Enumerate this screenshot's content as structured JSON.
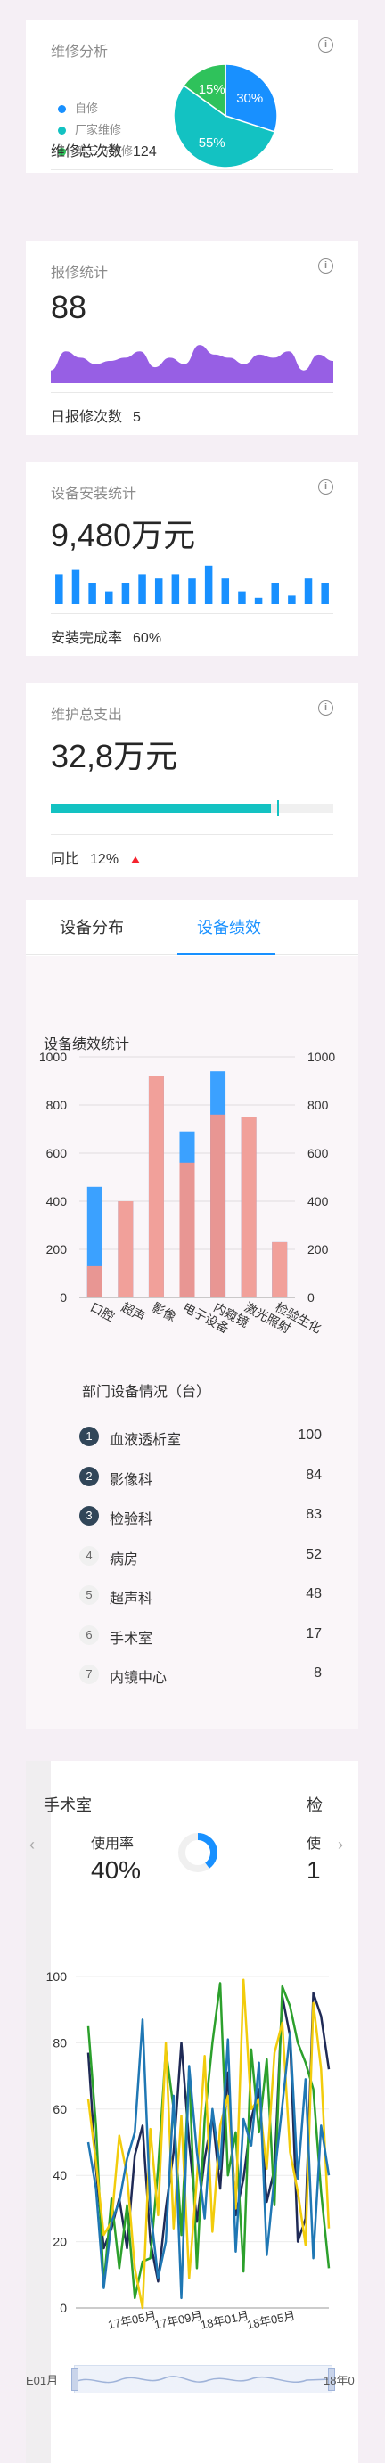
{
  "repair_analysis": {
    "title": "维修分析",
    "legend": [
      "自修",
      "厂家维修",
      "第三方维修"
    ],
    "legend_colors": [
      "#1890ff",
      "#13c2c2",
      "#2fc25b"
    ],
    "pie_labels": [
      "30%",
      "55%",
      "15%"
    ],
    "footer_label": "维修总次数",
    "footer_value": "124",
    "chart_data": {
      "type": "pie",
      "categories": [
        "自修",
        "厂家维修",
        "第三方维修"
      ],
      "values": [
        30,
        55,
        15
      ]
    }
  },
  "report_stats": {
    "title": "报修统计",
    "value": "88",
    "footer_label": "日报修次数",
    "footer_value": "5",
    "color": "#975fe4",
    "chart_data": {
      "type": "area",
      "values": [
        2,
        5,
        4,
        3,
        3.5,
        4,
        5,
        2.5,
        4,
        3,
        6,
        4.5,
        4,
        3,
        4.5,
        4,
        5,
        2,
        4.5,
        3.5
      ]
    }
  },
  "install_stats": {
    "title": "设备安装统计",
    "value": "9,480万元",
    "footer_label": "安装完成率",
    "footer_value": "60%",
    "color": "#1890ff",
    "chart_data": {
      "type": "bar",
      "values": [
        7,
        8,
        5,
        3,
        5,
        7,
        6,
        7,
        6,
        9,
        6,
        3,
        1.5,
        5,
        2,
        6,
        5
      ]
    }
  },
  "maintenance_cost": {
    "title": "维护总支出",
    "value": "32,8万元",
    "compare_label": "同比",
    "compare_value": "12%",
    "progress_color": "#13c2c2",
    "chart_data": {
      "type": "progress",
      "value": 0.78,
      "target": 0.8
    }
  },
  "performance": {
    "tabs": [
      "设备分布",
      "设备绩效"
    ],
    "active_tab": 1,
    "chart_title": "设备绩效统计",
    "chart_data": {
      "type": "bar",
      "categories": [
        "口腔",
        "超声",
        "影像",
        "电子设备",
        "内窥镜",
        "激光照射",
        "检验生化"
      ],
      "series": [
        {
          "name": "stack-blue",
          "color": "#3ba1ff",
          "values": [
            460,
            400,
            920,
            690,
            940,
            750,
            230
          ]
        },
        {
          "name": "pink",
          "color": "#e89693",
          "values": [
            130,
            400,
            920,
            560,
            760,
            750,
            230
          ]
        }
      ],
      "ylim": [
        0,
        1000
      ],
      "yticks": [
        0,
        200,
        400,
        600,
        800,
        1000
      ]
    },
    "rank_title": "部门设备情况（台）",
    "ranks": [
      {
        "no": "1",
        "name": "血液透析室",
        "value": "100"
      },
      {
        "no": "2",
        "name": "影像科",
        "value": "84"
      },
      {
        "no": "3",
        "name": "检验科",
        "value": "83"
      },
      {
        "no": "4",
        "name": "病房",
        "value": "52"
      },
      {
        "no": "5",
        "name": "超声科",
        "value": "48"
      },
      {
        "no": "6",
        "name": "手术室",
        "value": "17"
      },
      {
        "no": "7",
        "name": "内镜中心",
        "value": "8"
      }
    ]
  },
  "usage": {
    "dept_name": "手术室",
    "next_dept_peek": "检",
    "rate_label": "使用率",
    "rate_value": "40%",
    "next_label_peek": "使",
    "next_value_peek": "1",
    "ring_value": 0.4,
    "nav_prev": "‹",
    "nav_next": "›",
    "chart_data": {
      "type": "line",
      "x_labels": [
        "17年05月",
        "17年09月",
        "18年01月",
        "18年05月"
      ],
      "slider_left": "E01月",
      "slider_right": "18年0",
      "yticks": [
        0,
        20,
        40,
        60,
        80,
        100
      ],
      "ylim": [
        0,
        100
      ],
      "series": [
        {
          "name": "navy",
          "color": "#1f2a56",
          "values": [
            77,
            42,
            18,
            24,
            33,
            18,
            46,
            55,
            20,
            8,
            30,
            47,
            80,
            50,
            26,
            45,
            58,
            36,
            71,
            28,
            39,
            57,
            66,
            32,
            42,
            94,
            82,
            20,
            27,
            95,
            88,
            72
          ]
        },
        {
          "name": "green",
          "color": "#2ca02c",
          "values": [
            85,
            55,
            7,
            33,
            12,
            31,
            3,
            14,
            15,
            42,
            78,
            60,
            22,
            72,
            12,
            57,
            80,
            98,
            40,
            53,
            11,
            78,
            53,
            75,
            31,
            97,
            91,
            80,
            74,
            66,
            35,
            12
          ]
        },
        {
          "name": "yellow",
          "color": "#f2cc0c",
          "values": [
            63,
            44,
            22,
            26,
            52,
            40,
            12,
            0,
            54,
            28,
            80,
            24,
            58,
            9,
            39,
            76,
            23,
            55,
            64,
            30,
            99,
            60,
            63,
            42,
            77,
            86,
            47,
            35,
            19,
            92,
            72,
            24
          ]
        },
        {
          "name": "blue",
          "color": "#1f77b4",
          "values": [
            50,
            36,
            6,
            26,
            32,
            45,
            53,
            87,
            30,
            9,
            20,
            64,
            3,
            73,
            47,
            27,
            60,
            42,
            81,
            17,
            57,
            49,
            74,
            16,
            40,
            61,
            83,
            39,
            69,
            15,
            55,
            40
          ]
        }
      ]
    }
  }
}
